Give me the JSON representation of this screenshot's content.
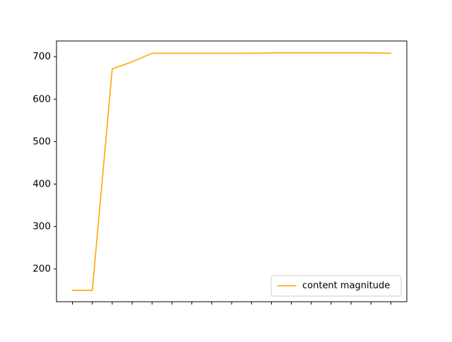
{
  "chart_data": {
    "type": "line",
    "x": [
      1,
      2,
      3,
      4,
      5,
      6,
      7,
      8,
      9,
      10,
      11,
      12,
      13,
      14,
      15,
      16,
      17
    ],
    "series": [
      {
        "name": "content magnitude",
        "color": "#ffa500",
        "values": [
          150,
          150,
          671,
          688,
          708,
          708,
          708,
          708,
          708,
          708,
          709,
          709,
          709,
          709,
          709,
          709,
          708
        ]
      }
    ],
    "x_tick_labels": [],
    "y_ticks": [
      200,
      300,
      400,
      500,
      600,
      700
    ],
    "ylim": [
      123,
      737
    ],
    "xlim": [
      0.2,
      17.8
    ],
    "title": "",
    "xlabel": "",
    "ylabel": "",
    "grid": false,
    "legend_position": "lower-right"
  }
}
